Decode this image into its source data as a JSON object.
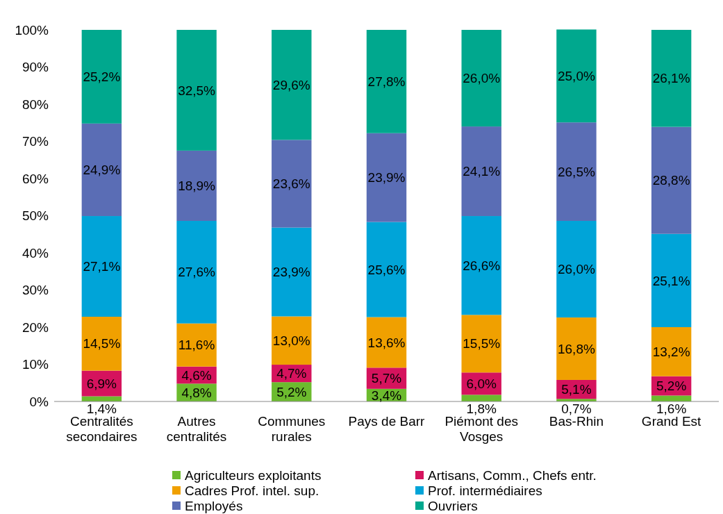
{
  "chart_data": {
    "type": "bar",
    "stacked": true,
    "categories": [
      "Centralités secondaires",
      "Autres centralités",
      "Communes rurales",
      "Pays de Barr",
      "Piémont des Vosges",
      "Bas-Rhin",
      "Grand Est"
    ],
    "ylim": [
      0,
      100
    ],
    "yticks": [
      {
        "value": 0,
        "label": "0%"
      },
      {
        "value": 10,
        "label": "10%"
      },
      {
        "value": 20,
        "label": "20%"
      },
      {
        "value": 30,
        "label": "30%"
      },
      {
        "value": 40,
        "label": "40%"
      },
      {
        "value": 50,
        "label": "50%"
      },
      {
        "value": 60,
        "label": "60%"
      },
      {
        "value": 70,
        "label": "70%"
      },
      {
        "value": 80,
        "label": "80%"
      },
      {
        "value": 90,
        "label": "90%"
      },
      {
        "value": 100,
        "label": "100%"
      }
    ],
    "grid": false,
    "legend": "bottom",
    "series": [
      {
        "name": "Agriculteurs exploitants",
        "color": "#6cbb2e",
        "values": [
          1.4,
          4.8,
          5.2,
          3.4,
          1.8,
          0.7,
          1.6
        ],
        "value_labels": [
          "1,4%",
          "4,8%",
          "5,2%",
          "3,4%",
          "1,8%",
          "0,7%",
          "1,6%"
        ]
      },
      {
        "name": "Artisans, Comm., Chefs entr.",
        "color": "#d5135d",
        "values": [
          6.9,
          4.6,
          4.7,
          5.7,
          6.0,
          5.1,
          5.2
        ],
        "value_labels": [
          "6,9%",
          "4,6%",
          "4,7%",
          "5,7%",
          "6,0%",
          "5,1%",
          "5,2%"
        ]
      },
      {
        "name": "Cadres Prof. intel. sup.",
        "color": "#f0a000",
        "values": [
          14.5,
          11.6,
          13.0,
          13.6,
          15.5,
          16.8,
          13.2
        ],
        "value_labels": [
          "14,5%",
          "11,6%",
          "13,0%",
          "13,6%",
          "15,5%",
          "16,8%",
          "13,2%"
        ]
      },
      {
        "name": "Prof. intermédiaires",
        "color": "#00a4d8",
        "values": [
          27.1,
          27.6,
          23.9,
          25.6,
          26.6,
          26.0,
          25.1
        ],
        "value_labels": [
          "27,1%",
          "27,6%",
          "23,9%",
          "25,6%",
          "26,6%",
          "26,0%",
          "25,1%"
        ]
      },
      {
        "name": "Employés",
        "color": "#5a6db5",
        "values": [
          24.9,
          18.9,
          23.6,
          23.9,
          24.1,
          26.5,
          28.8
        ],
        "value_labels": [
          "24,9%",
          "18,9%",
          "23,6%",
          "23,9%",
          "24,1%",
          "26,5%",
          "28,8%"
        ]
      },
      {
        "name": "Ouvriers",
        "color": "#00a88e",
        "values": [
          25.2,
          32.5,
          29.6,
          27.8,
          26.0,
          25.0,
          26.1
        ],
        "value_labels": [
          "25,2%",
          "32,5%",
          "29,6%",
          "27,8%",
          "26,0%",
          "25,0%",
          "26,1%"
        ]
      }
    ]
  }
}
